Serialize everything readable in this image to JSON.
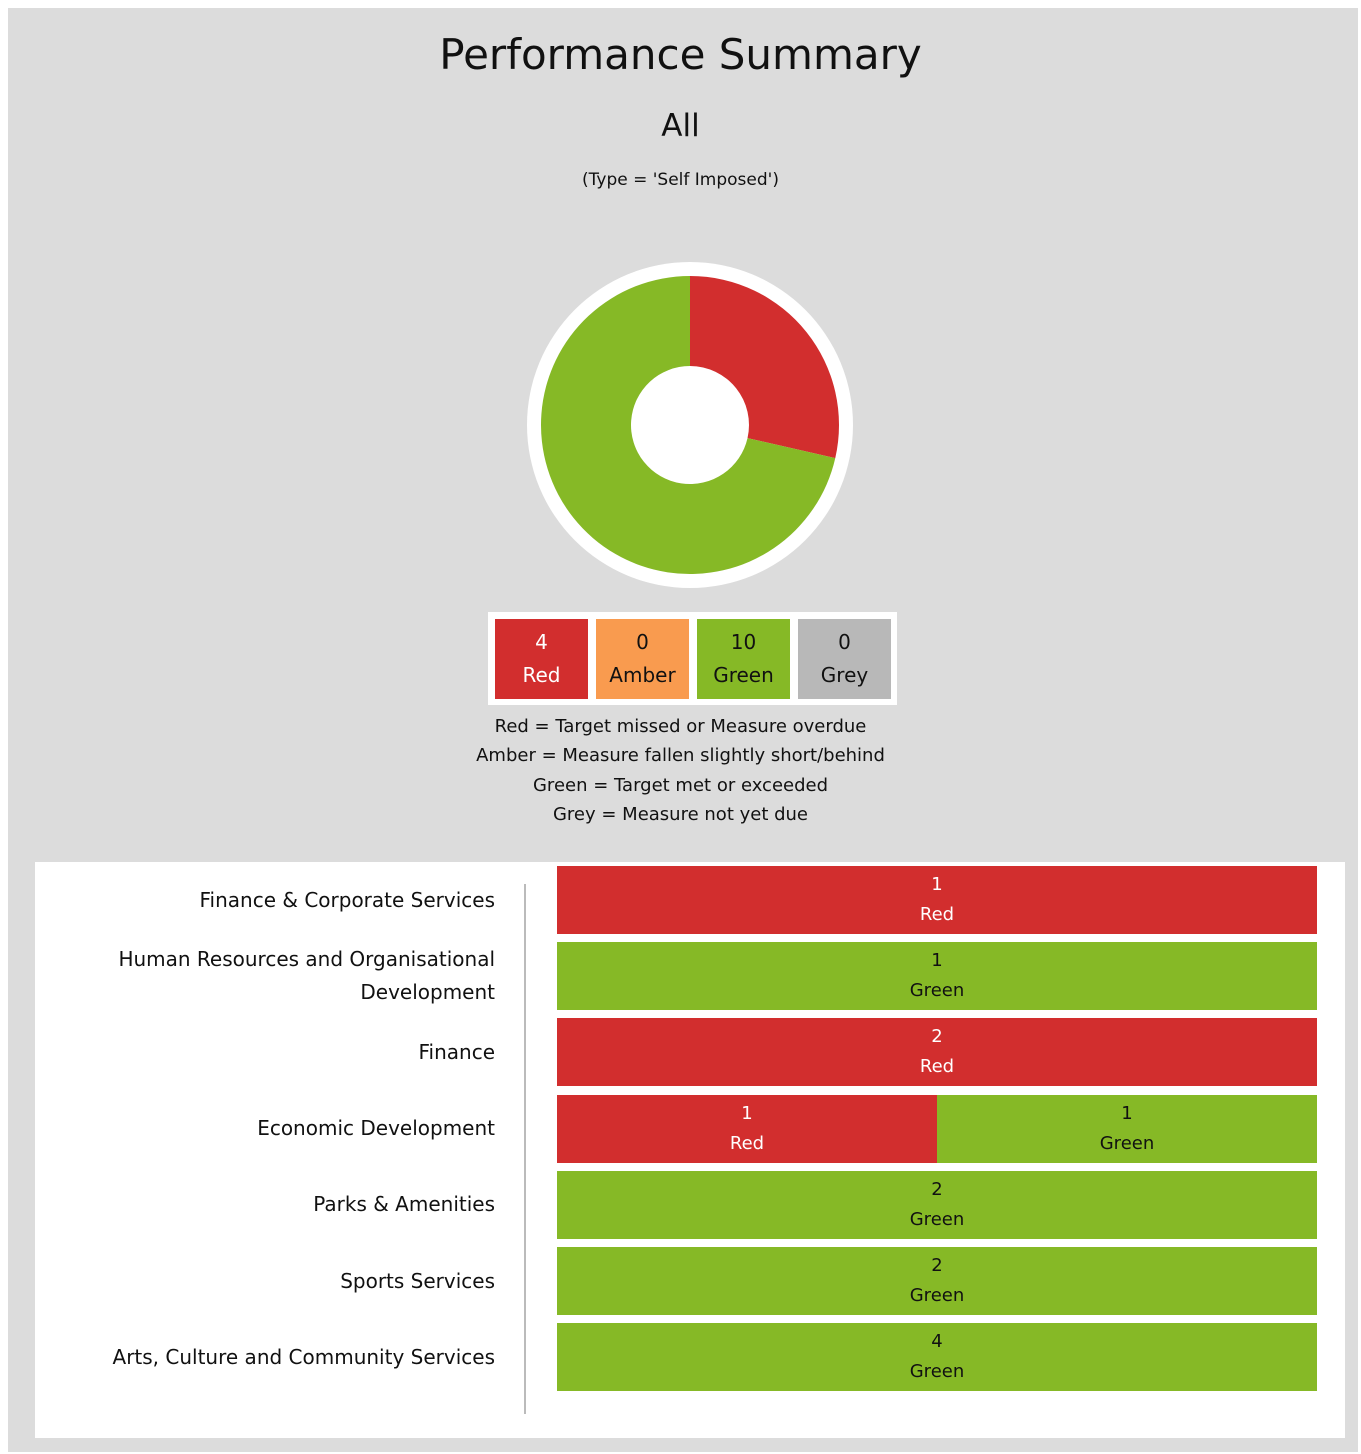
{
  "header": {
    "title": "Performance Summary",
    "subtitle": "All",
    "filter": "(Type = 'Self Imposed')"
  },
  "chart_data": [
    {
      "type": "pie",
      "donut": true,
      "categories": [
        "Red",
        "Amber",
        "Green",
        "Grey"
      ],
      "values": [
        4,
        0,
        10,
        0
      ],
      "colors": [
        "#d22e2e",
        "#f99b4f",
        "#86b926",
        "#b8b8b8"
      ]
    },
    {
      "type": "bar",
      "stacked": true,
      "normalized": true,
      "categories": [
        "Finance & Corporate Services",
        "Human Resources and Organisational Development",
        "Finance",
        "Economic Development",
        "Parks & Amenities",
        "Sports Services",
        "Arts, Culture and Community Services"
      ],
      "series": [
        {
          "name": "Red",
          "color": "#d22e2e",
          "values": [
            1,
            0,
            2,
            1,
            0,
            0,
            0
          ]
        },
        {
          "name": "Green",
          "color": "#86b926",
          "values": [
            0,
            1,
            0,
            1,
            2,
            2,
            4
          ]
        }
      ]
    }
  ],
  "notes": [
    "Red = Target missed or Measure overdue",
    "Amber = Measure fallen slightly short/behind",
    "Green = Target met or exceeded",
    "Grey = Measure not yet due"
  ]
}
